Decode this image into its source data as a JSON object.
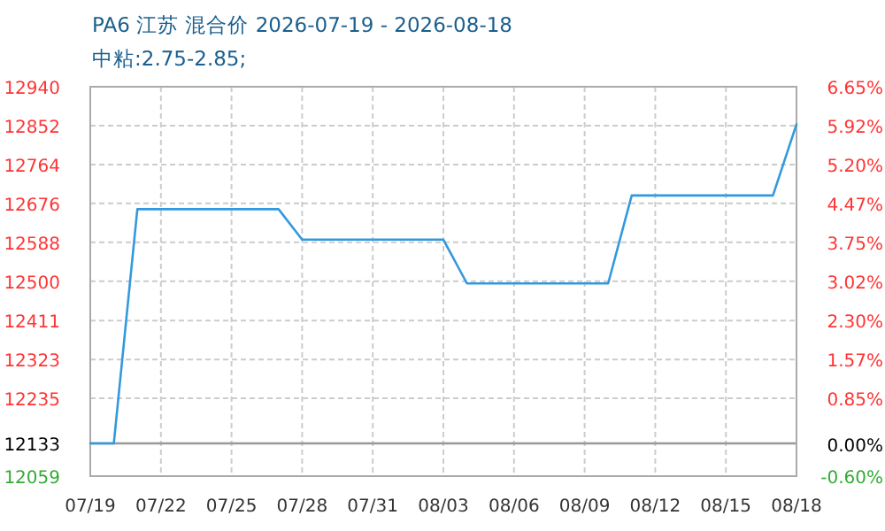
{
  "chart_data": {
    "type": "line",
    "title": "PA6 江苏 混合价 2026-07-19 - 2026-08-18",
    "subtitle": "中粘:2.75-2.85;",
    "x": [
      "2026-07-19",
      "2026-07-20",
      "2026-07-21",
      "2026-07-22",
      "2026-07-23",
      "2026-07-24",
      "2026-07-25",
      "2026-07-26",
      "2026-07-27",
      "2026-07-28",
      "2026-07-29",
      "2026-07-30",
      "2026-07-31",
      "2026-08-01",
      "2026-08-02",
      "2026-08-03",
      "2026-08-04",
      "2026-08-05",
      "2026-08-06",
      "2026-08-07",
      "2026-08-08",
      "2026-08-09",
      "2026-08-10",
      "2026-08-11",
      "2026-08-12",
      "2026-08-13",
      "2026-08-14",
      "2026-08-15",
      "2026-08-16",
      "2026-08-17",
      "2026-08-18"
    ],
    "values": [
      12133,
      12133,
      12663,
      12663,
      12663,
      12663,
      12663,
      12663,
      12663,
      12594,
      12594,
      12594,
      12594,
      12594,
      12594,
      12594,
      12495,
      12495,
      12495,
      12495,
      12495,
      12495,
      12495,
      12694,
      12694,
      12694,
      12694,
      12694,
      12694,
      12694,
      12855
    ],
    "color": "#3399dd",
    "xlim": [
      "2026-07-19",
      "2026-08-18"
    ],
    "xticks": [
      {
        "value": "2026-07-19",
        "label": "07/19"
      },
      {
        "value": "2026-07-22",
        "label": "07/22"
      },
      {
        "value": "2026-07-25",
        "label": "07/25"
      },
      {
        "value": "2026-07-28",
        "label": "07/28"
      },
      {
        "value": "2026-07-31",
        "label": "07/31"
      },
      {
        "value": "2026-08-03",
        "label": "08/03"
      },
      {
        "value": "2026-08-06",
        "label": "08/06"
      },
      {
        "value": "2026-08-09",
        "label": "08/09"
      },
      {
        "value": "2026-08-12",
        "label": "08/12"
      },
      {
        "value": "2026-08-15",
        "label": "08/15"
      },
      {
        "value": "2026-08-18",
        "label": "08/18"
      }
    ],
    "ylim": [
      12059,
      12940
    ],
    "yticks": [
      12940,
      12852,
      12764,
      12676,
      12588,
      12500,
      12411,
      12323,
      12235,
      12133,
      12059
    ],
    "y2lim": [
      -0.6,
      6.65
    ],
    "y2ticks": [
      {
        "value": 6.65,
        "label": "6.65%"
      },
      {
        "value": 5.92,
        "label": "5.92%"
      },
      {
        "value": 5.2,
        "label": "5.20%"
      },
      {
        "value": 4.47,
        "label": "4.47%"
      },
      {
        "value": 3.75,
        "label": "3.75%"
      },
      {
        "value": 3.02,
        "label": "3.02%"
      },
      {
        "value": 2.3,
        "label": "2.30%"
      },
      {
        "value": 1.57,
        "label": "1.57%"
      },
      {
        "value": 0.85,
        "label": "0.85%"
      },
      {
        "value": 0,
        "label": "0.00%"
      },
      {
        "value": -0.6,
        "label": "-0.60%"
      }
    ],
    "grid": true,
    "ref_lines": [
      {
        "axis": "y",
        "value": 12133,
        "color": "#999999"
      }
    ]
  }
}
